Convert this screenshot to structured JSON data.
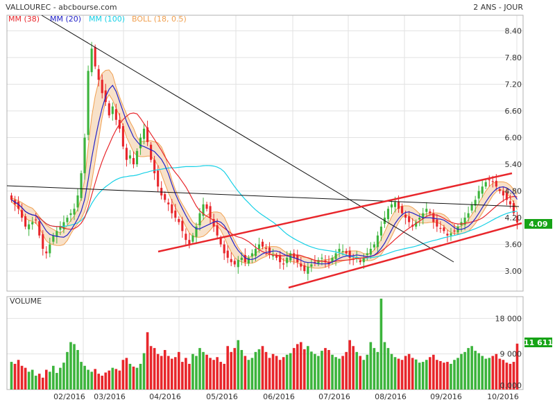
{
  "header": {
    "title": "VALLOUREC - abcbourse.com",
    "period": "2 ANS - JOUR"
  },
  "legend": [
    {
      "label": "MM (38)",
      "color": "#e8262b"
    },
    {
      "label": "MM (20)",
      "color": "#2323c8"
    },
    {
      "label": "MM (100)",
      "color": "#15d0e6"
    },
    {
      "label": "BOLL (18, 0.5)",
      "color": "#f0a050"
    }
  ],
  "volume_label": "VOLUME",
  "colors": {
    "up": "#3cb43c",
    "down": "#e8262b",
    "grid": "#e2e2e2",
    "frame": "#b0b0b0",
    "mm38": "#e8262b",
    "mm20": "#2323c8",
    "mm100": "#15d0e6",
    "boll_line": "#f0a050",
    "boll_fill": "#f7dcc0",
    "trend_black": "#111111",
    "channel_red": "#e8262b",
    "badge": "#16a316"
  },
  "chart_data": [
    {
      "type": "candlestick",
      "title": "VALLOUREC",
      "x_ticks": [
        "02/2016",
        "03/2016",
        "04/2016",
        "05/2016",
        "06/2016",
        "07/2016",
        "08/2016",
        "09/2016",
        "10/2016"
      ],
      "y_ticks": [
        "8.40",
        "7.80",
        "7.20",
        "6.60",
        "6.00",
        "5.40",
        "4.80",
        "4.20",
        "3.60",
        "3.00"
      ],
      "ylim": [
        2.55,
        8.75
      ],
      "last_price": "4.09",
      "closes": [
        4.6,
        4.5,
        4.4,
        4.2,
        4.0,
        4.05,
        4.1,
        4.15,
        3.8,
        3.5,
        3.4,
        3.6,
        3.8,
        3.9,
        4.0,
        4.1,
        4.2,
        4.3,
        4.4,
        4.7,
        5.2,
        6.0,
        7.5,
        8.0,
        7.6,
        7.3,
        7.0,
        6.8,
        6.5,
        6.7,
        6.4,
        6.2,
        5.8,
        5.5,
        5.6,
        5.4,
        5.7,
        6.0,
        6.2,
        5.9,
        5.5,
        5.2,
        4.9,
        4.7,
        4.6,
        4.5,
        4.3,
        4.2,
        4.1,
        3.9,
        3.7,
        3.6,
        3.8,
        4.0,
        4.3,
        4.5,
        4.4,
        4.2,
        4.0,
        3.8,
        3.6,
        3.4,
        3.3,
        3.2,
        3.15,
        3.25,
        3.3,
        3.2,
        3.3,
        3.4,
        3.5,
        3.6,
        3.55,
        3.5,
        3.4,
        3.35,
        3.3,
        3.2,
        3.15,
        3.3,
        3.4,
        3.3,
        3.2,
        3.1,
        3.0,
        3.1,
        3.15,
        3.2,
        3.25,
        3.3,
        3.2,
        3.15,
        3.3,
        3.4,
        3.5,
        3.45,
        3.4,
        3.3,
        3.25,
        3.3,
        3.2,
        3.3,
        3.4,
        3.5,
        3.6,
        3.8,
        4.0,
        4.2,
        4.4,
        4.5,
        4.55,
        4.4,
        4.3,
        4.2,
        4.1,
        4.0,
        4.1,
        4.2,
        4.3,
        4.4,
        4.3,
        4.1,
        4.0,
        3.95,
        3.9,
        3.8,
        3.85,
        3.9,
        4.0,
        4.1,
        4.2,
        4.3,
        4.5,
        4.6,
        4.8,
        4.9,
        5.0,
        5.05,
        5.0,
        4.9,
        4.8,
        4.7,
        4.6,
        4.5,
        4.3,
        4.09
      ],
      "overlays": [
        "MM (38)",
        "MM (20)",
        "MM (100)",
        "BOLL (18, 0.5)"
      ]
    },
    {
      "type": "bar",
      "title": "VOLUME",
      "y_ticks": [
        "18 000",
        "9 000",
        "0.000"
      ],
      "ylim": [
        0,
        23500
      ],
      "last_value": "11 611",
      "values": [
        7000,
        6500,
        7500,
        6000,
        5500,
        4500,
        5000,
        3500,
        4000,
        3000,
        5000,
        4500,
        6000,
        4200,
        5500,
        6800,
        9500,
        12000,
        11500,
        10000,
        7000,
        6000,
        5000,
        4500,
        5200,
        4000,
        3500,
        4300,
        4800,
        5500,
        5200,
        4800,
        7500,
        8000,
        6500,
        5800,
        5500,
        6500,
        9200,
        14500,
        11000,
        10500,
        9000,
        8500,
        10000,
        8500,
        7800,
        8200,
        9500,
        7000,
        8000,
        6500,
        9000,
        8500,
        10500,
        9500,
        8800,
        8000,
        7500,
        8200,
        7000,
        6500,
        11000,
        9500,
        10500,
        12500,
        10000,
        8500,
        7500,
        8000,
        9500,
        10200,
        11000,
        9500,
        8000,
        9000,
        8500,
        7500,
        8200,
        8800,
        9200,
        10500,
        11500,
        12000,
        10200,
        11000,
        9600,
        9000,
        8500,
        9800,
        10500,
        10000,
        8800,
        8200,
        7800,
        8500,
        9500,
        12500,
        11000,
        9500,
        8500,
        7500,
        8800,
        12000,
        10500,
        9500,
        23000,
        12000,
        10500,
        9000,
        8200,
        7800,
        7500,
        8500,
        9000,
        8000,
        7600,
        6800,
        7000,
        7500,
        8200,
        8800,
        7500,
        7200,
        6800,
        7000,
        6500,
        7500,
        8000,
        9000,
        9500,
        10500,
        11000,
        9800,
        9200,
        8500,
        7800,
        8000,
        8500,
        9000,
        7800,
        7500,
        6800,
        6500,
        7000,
        11611
      ]
    }
  ]
}
